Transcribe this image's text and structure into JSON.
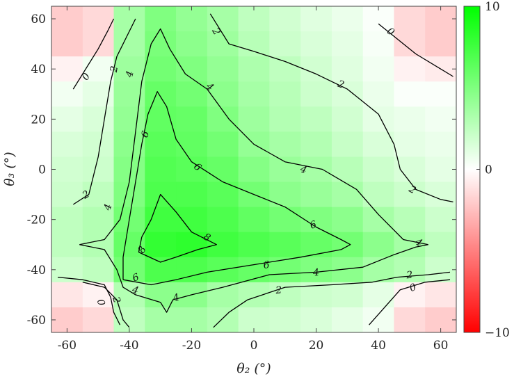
{
  "chart_data": {
    "type": "heatmap",
    "title": "",
    "xlabel": "θ₂ (°)",
    "ylabel": "θ₃ (°)",
    "xlim": [
      -65,
      65
    ],
    "ylim": [
      -65,
      65
    ],
    "x_ticks": [
      "-60",
      "-40",
      "-20",
      "0",
      "20",
      "40",
      "60"
    ],
    "y_ticks": [
      "60",
      "40",
      "20",
      "0",
      "-20",
      "-40",
      "-60"
    ],
    "colorbar": {
      "ticks": [
        "10",
        "0",
        "−10"
      ],
      "range": [
        -10,
        10
      ],
      "colors": {
        "high": "#00ff00",
        "mid": "#ffffff",
        "low": "#ff0000"
      }
    },
    "grid_step": 10,
    "grid_x": [
      -65,
      -55,
      -45,
      -35,
      -25,
      -15,
      -5,
      5,
      15,
      25,
      35,
      45,
      55,
      65
    ],
    "grid_y": [
      65,
      55,
      45,
      35,
      25,
      15,
      5,
      -5,
      -15,
      -25,
      -35,
      -45,
      -55,
      -65
    ],
    "values": [
      [
        -2.0,
        -1.5,
        3.5,
        5.0,
        4.2,
        3.5,
        2.5,
        1.8,
        1.2,
        0.8,
        0.2,
        -1.5,
        -2.0
      ],
      [
        -2.0,
        -1.5,
        3.5,
        5.2,
        4.5,
        3.8,
        2.8,
        2.0,
        1.5,
        1.0,
        0.3,
        -1.5,
        -2.0
      ],
      [
        -0.5,
        0.5,
        3.8,
        5.5,
        5.0,
        4.2,
        3.2,
        2.5,
        1.8,
        1.2,
        0.5,
        -0.5,
        -0.8
      ],
      [
        0.5,
        1.0,
        4.0,
        6.0,
        5.5,
        4.5,
        3.5,
        2.8,
        2.0,
        1.5,
        0.8,
        0.2,
        0.2
      ],
      [
        1.0,
        1.5,
        4.2,
        6.2,
        6.0,
        5.0,
        3.8,
        3.0,
        2.5,
        1.8,
        1.0,
        0.8,
        0.5
      ],
      [
        1.5,
        1.8,
        4.5,
        6.5,
        6.2,
        5.5,
        4.2,
        3.5,
        3.0,
        2.2,
        1.5,
        1.0,
        0.8
      ],
      [
        1.8,
        2.0,
        4.8,
        6.8,
        6.5,
        6.0,
        4.8,
        4.0,
        3.5,
        2.8,
        2.0,
        1.5,
        1.0
      ],
      [
        2.0,
        2.5,
        5.0,
        7.0,
        7.0,
        6.5,
        5.5,
        4.5,
        4.0,
        3.5,
        2.5,
        2.0,
        1.5
      ],
      [
        2.5,
        3.0,
        5.5,
        7.5,
        7.5,
        7.0,
        6.2,
        5.5,
        5.0,
        4.5,
        3.5,
        2.8,
        2.0
      ],
      [
        2.5,
        3.0,
        6.0,
        8.0,
        8.2,
        7.5,
        7.0,
        6.5,
        6.0,
        5.5,
        4.5,
        3.5,
        2.5
      ],
      [
        2.0,
        2.5,
        5.5,
        7.0,
        7.0,
        6.5,
        6.0,
        5.5,
        5.0,
        4.5,
        3.5,
        3.0,
        2.0
      ],
      [
        -1.0,
        -0.5,
        3.0,
        4.5,
        4.5,
        3.5,
        3.0,
        2.5,
        2.0,
        1.8,
        1.0,
        -0.5,
        -1.0
      ],
      [
        -2.0,
        -1.5,
        2.5,
        3.5,
        3.5,
        3.0,
        2.0,
        1.8,
        1.5,
        1.0,
        0.5,
        -1.5,
        -2.0
      ]
    ],
    "contour_levels": [
      0,
      2,
      4,
      6,
      8
    ],
    "contours": [
      {
        "level": 0,
        "points": [
          [
            -58,
            32
          ],
          [
            -53,
            42
          ],
          [
            -50,
            48
          ],
          [
            -47,
            55
          ],
          [
            -45,
            60
          ]
        ]
      },
      {
        "level": 0,
        "points": [
          [
            -43,
            -62
          ],
          [
            -45,
            -57
          ],
          [
            -46,
            -51
          ],
          [
            -48,
            -46
          ],
          [
            -55,
            -44
          ],
          [
            -63,
            -43
          ]
        ]
      },
      {
        "level": 0,
        "points": [
          [
            40,
            58
          ],
          [
            45,
            53
          ],
          [
            52,
            46
          ],
          [
            60,
            40
          ],
          [
            64,
            37
          ]
        ]
      },
      {
        "level": 0,
        "points": [
          [
            37,
            -62
          ],
          [
            42,
            -55
          ],
          [
            47,
            -48
          ],
          [
            55,
            -45
          ],
          [
            63,
            -44
          ]
        ]
      },
      {
        "level": 2,
        "points": [
          [
            -58,
            -14
          ],
          [
            -53,
            -10
          ],
          [
            -50,
            5
          ],
          [
            -48,
            20
          ],
          [
            -46,
            35
          ],
          [
            -44,
            45
          ],
          [
            -38,
            60
          ]
        ]
      },
      {
        "level": 2,
        "points": [
          [
            -55,
            -45
          ],
          [
            -48,
            -47
          ],
          [
            -44,
            -52
          ],
          [
            -42,
            -60
          ],
          [
            -40,
            -63
          ]
        ]
      },
      {
        "level": 2,
        "points": [
          [
            -14,
            62
          ],
          [
            -8,
            50
          ],
          [
            0,
            47
          ],
          [
            10,
            43
          ],
          [
            20,
            38
          ],
          [
            30,
            32
          ],
          [
            40,
            22
          ],
          [
            45,
            10
          ],
          [
            47,
            0
          ],
          [
            52,
            -8
          ],
          [
            60,
            -12
          ],
          [
            64,
            -13
          ]
        ]
      },
      {
        "level": 2,
        "points": [
          [
            -13,
            -63
          ],
          [
            -8,
            -57
          ],
          [
            -2,
            -52
          ],
          [
            10,
            -47
          ],
          [
            25,
            -46
          ],
          [
            38,
            -45
          ],
          [
            46,
            -43
          ],
          [
            56,
            -42
          ],
          [
            63,
            -41
          ]
        ]
      },
      {
        "level": 4,
        "points": [
          [
            -56,
            -30
          ],
          [
            -48,
            -28
          ],
          [
            -43,
            -20
          ],
          [
            -40,
            -5
          ],
          [
            -38,
            15
          ],
          [
            -36,
            35
          ],
          [
            -33,
            50
          ],
          [
            -30,
            56
          ],
          [
            -27,
            48
          ],
          [
            -22,
            38
          ],
          [
            -15,
            32
          ],
          [
            -8,
            20
          ],
          [
            0,
            10
          ],
          [
            10,
            3
          ],
          [
            22,
            0
          ],
          [
            33,
            -8
          ],
          [
            40,
            -18
          ],
          [
            48,
            -28
          ],
          [
            56,
            -30
          ]
        ]
      },
      {
        "level": 4,
        "points": [
          [
            -56,
            -30
          ],
          [
            -48,
            -32
          ],
          [
            -44,
            -40
          ],
          [
            -42,
            -47
          ],
          [
            -38,
            -50
          ],
          [
            -30,
            -53
          ],
          [
            -28,
            -57
          ],
          [
            -26,
            -52
          ],
          [
            -20,
            -50
          ],
          [
            -10,
            -47
          ],
          [
            5,
            -42
          ],
          [
            20,
            -41
          ],
          [
            35,
            -39
          ],
          [
            45,
            -34
          ],
          [
            52,
            -31
          ],
          [
            56,
            -30
          ]
        ]
      },
      {
        "level": 6,
        "points": [
          [
            -42,
            -44
          ],
          [
            -42,
            -35
          ],
          [
            -40,
            -20
          ],
          [
            -38,
            -5
          ],
          [
            -36,
            10
          ],
          [
            -34,
            22
          ],
          [
            -31,
            31
          ],
          [
            -28,
            25
          ],
          [
            -25,
            12
          ],
          [
            -20,
            3
          ],
          [
            -10,
            -5
          ],
          [
            0,
            -10
          ],
          [
            10,
            -15
          ],
          [
            20,
            -23
          ],
          [
            28,
            -28
          ],
          [
            31,
            -30
          ],
          [
            28,
            -32
          ],
          [
            15,
            -35
          ],
          [
            0,
            -38
          ],
          [
            -15,
            -41
          ],
          [
            -25,
            -44
          ],
          [
            -33,
            -46
          ],
          [
            -42,
            -44
          ]
        ]
      },
      {
        "level": 8,
        "points": [
          [
            -37,
            -33
          ],
          [
            -36,
            -27
          ],
          [
            -33,
            -20
          ],
          [
            -30,
            -10
          ],
          [
            -25,
            -17
          ],
          [
            -20,
            -25
          ],
          [
            -12,
            -30
          ],
          [
            -18,
            -32
          ],
          [
            -25,
            -35
          ],
          [
            -30,
            -37
          ],
          [
            -37,
            -33
          ]
        ]
      }
    ],
    "contour_labels": [
      {
        "text": "0",
        "x": -54,
        "y": 37,
        "angle": -55
      },
      {
        "text": "0",
        "x": -49,
        "y": -53,
        "angle": 75
      },
      {
        "text": "0",
        "x": 44,
        "y": 55,
        "angle": 40
      },
      {
        "text": "0",
        "x": 51,
        "y": -47,
        "angle": -20
      },
      {
        "text": "2",
        "x": -45,
        "y": 40,
        "angle": -80
      },
      {
        "text": "2",
        "x": -54,
        "y": -10,
        "angle": -30
      },
      {
        "text": "2",
        "x": -44,
        "y": -52,
        "angle": 75
      },
      {
        "text": "2",
        "x": -12,
        "y": 55,
        "angle": 60
      },
      {
        "text": "2",
        "x": 28,
        "y": 34,
        "angle": 20
      },
      {
        "text": "2",
        "x": 51,
        "y": -8,
        "angle": 30
      },
      {
        "text": "2",
        "x": 50,
        "y": -42,
        "angle": -5
      },
      {
        "text": "2",
        "x": 8,
        "y": -48,
        "angle": -5
      },
      {
        "text": "4",
        "x": -40,
        "y": 38,
        "angle": -75
      },
      {
        "text": "4",
        "x": -47,
        "y": -15,
        "angle": -75
      },
      {
        "text": "4",
        "x": -14,
        "y": 33,
        "angle": 40
      },
      {
        "text": "4",
        "x": 16,
        "y": 0,
        "angle": 20
      },
      {
        "text": "4",
        "x": 53,
        "y": -29,
        "angle": 30
      },
      {
        "text": "4",
        "x": 20,
        "y": -41,
        "angle": -5
      },
      {
        "text": "4",
        "x": -38,
        "y": -48,
        "angle": 15
      },
      {
        "text": "4",
        "x": -25,
        "y": -51,
        "angle": -15
      },
      {
        "text": "6",
        "x": -35,
        "y": 14,
        "angle": -70
      },
      {
        "text": "6",
        "x": -18,
        "y": 1,
        "angle": 40
      },
      {
        "text": "6",
        "x": 19,
        "y": -22,
        "angle": -20
      },
      {
        "text": "6",
        "x": 4,
        "y": -38,
        "angle": -10
      },
      {
        "text": "6",
        "x": -38,
        "y": -43,
        "angle": -20
      },
      {
        "text": "8",
        "x": -15,
        "y": -27,
        "angle": 30
      },
      {
        "text": "8",
        "x": -36,
        "y": -32,
        "angle": -60
      }
    ]
  }
}
